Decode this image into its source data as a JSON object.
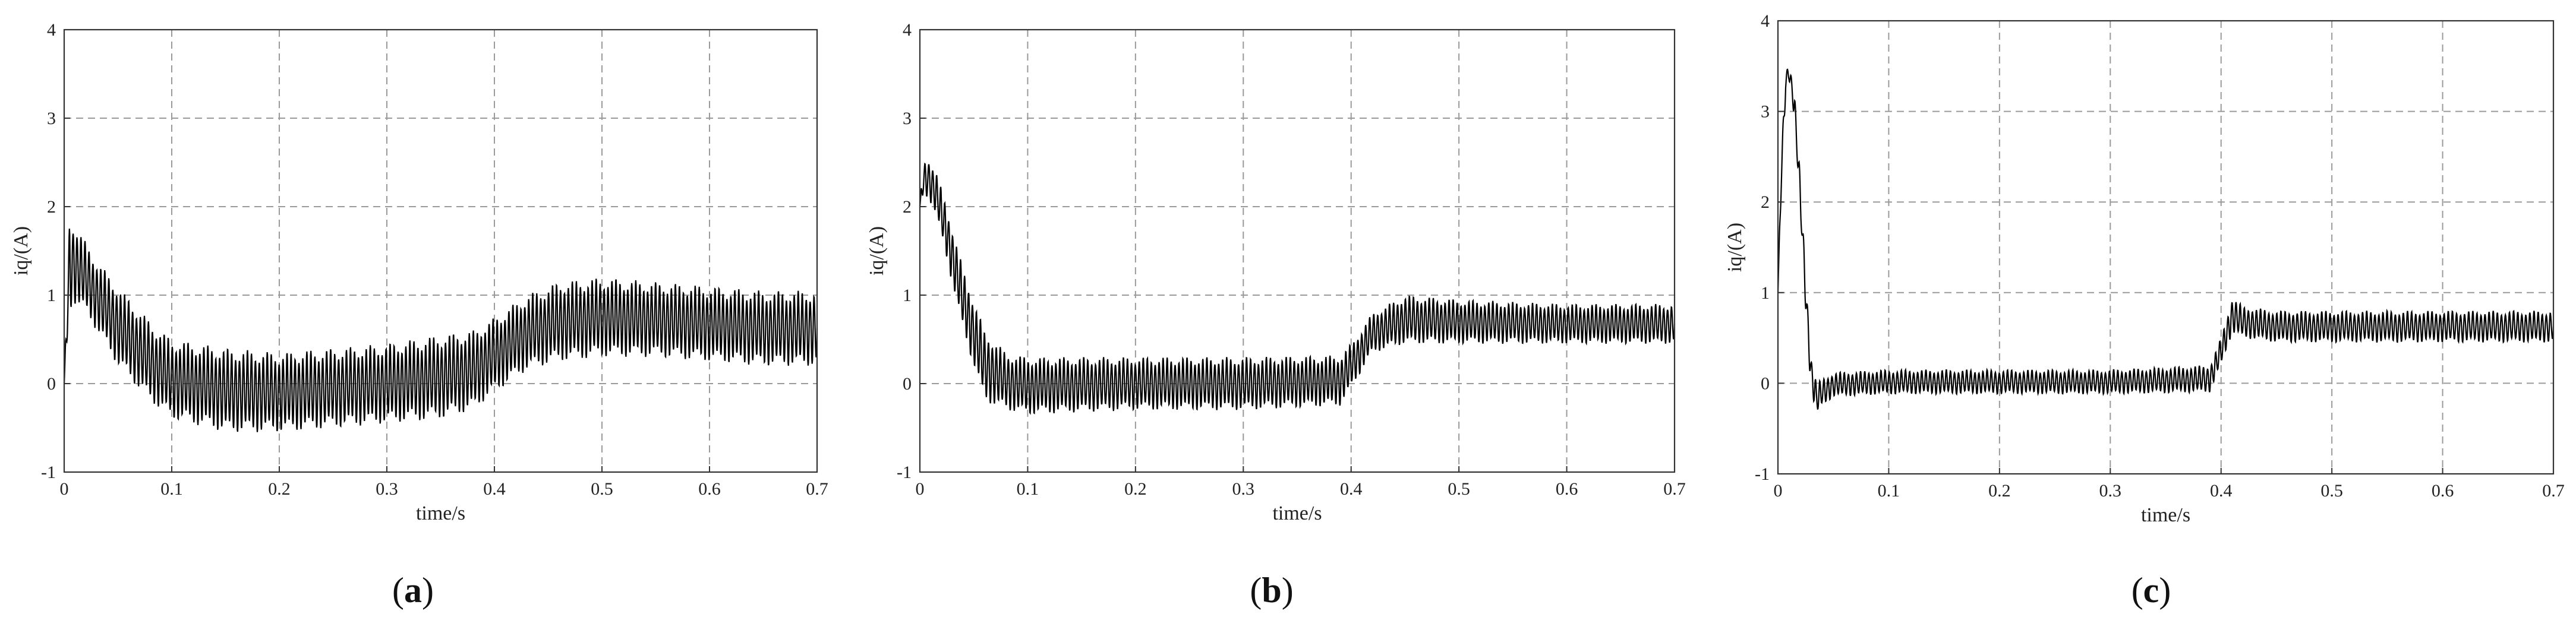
{
  "chart_data": [
    {
      "type": "line",
      "panel": "a",
      "caption_letter": "a",
      "xlabel": "time/s",
      "ylabel": "iq/(A)",
      "xlim": [
        0,
        0.7
      ],
      "ylim": [
        -1,
        4
      ],
      "x_ticks": [
        "0",
        "0.1",
        "0.2",
        "0.3",
        "0.4",
        "0.5",
        "0.6",
        "0.7"
      ],
      "y_ticks": [
        "-1",
        "0",
        "1",
        "2",
        "3",
        "4"
      ],
      "grid": true,
      "series_color": "#000000",
      "envelope": {
        "t": [
          0,
          0.005,
          0.01,
          0.02,
          0.03,
          0.05,
          0.08,
          0.1,
          0.15,
          0.2,
          0.25,
          0.3,
          0.35,
          0.38,
          0.4,
          0.43,
          0.46,
          0.5,
          0.55,
          0.6,
          0.65,
          0.7
        ],
        "upper": [
          0,
          1.9,
          1.8,
          1.6,
          1.4,
          1.1,
          0.7,
          0.5,
          0.4,
          0.35,
          0.4,
          0.45,
          0.55,
          0.6,
          0.75,
          1.0,
          1.15,
          1.2,
          1.15,
          1.1,
          1.05,
          1.05
        ],
        "lower": [
          0,
          0.8,
          0.9,
          0.8,
          0.6,
          0.2,
          -0.2,
          -0.4,
          -0.55,
          -0.55,
          -0.5,
          -0.45,
          -0.4,
          -0.3,
          -0.1,
          0.15,
          0.25,
          0.3,
          0.3,
          0.25,
          0.2,
          0.2
        ]
      }
    },
    {
      "type": "line",
      "panel": "b",
      "caption_letter": "b",
      "xlabel": "time/s",
      "ylabel": "iq/(A)",
      "xlim": [
        0,
        0.7
      ],
      "ylim": [
        -1,
        4
      ],
      "x_ticks": [
        "0",
        "0.1",
        "0.2",
        "0.3",
        "0.4",
        "0.5",
        "0.6",
        "0.7"
      ],
      "y_ticks": [
        "-1",
        "0",
        "1",
        "2",
        "3",
        "4"
      ],
      "grid": true,
      "series_color": "#000000",
      "envelope": {
        "t": [
          0,
          0.003,
          0.008,
          0.015,
          0.025,
          0.04,
          0.06,
          0.08,
          0.1,
          0.2,
          0.3,
          0.39,
          0.4,
          0.42,
          0.45,
          0.5,
          0.6,
          0.7
        ],
        "upper": [
          2.0,
          2.5,
          2.55,
          2.4,
          2.0,
          1.3,
          0.6,
          0.35,
          0.3,
          0.3,
          0.3,
          0.32,
          0.45,
          0.8,
          1.0,
          0.95,
          0.9,
          0.9
        ],
        "lower": [
          2.0,
          2.1,
          2.1,
          1.9,
          1.4,
          0.6,
          -0.2,
          -0.3,
          -0.35,
          -0.3,
          -0.3,
          -0.25,
          -0.05,
          0.35,
          0.45,
          0.45,
          0.45,
          0.45
        ]
      }
    },
    {
      "type": "line",
      "panel": "c",
      "caption_letter": "c",
      "xlabel": "time/s",
      "ylabel": "iq/(A)",
      "xlim": [
        0,
        0.7
      ],
      "ylim": [
        -1,
        4
      ],
      "x_ticks": [
        "0",
        "0.1",
        "0.2",
        "0.3",
        "0.4",
        "0.5",
        "0.6",
        "0.7"
      ],
      "y_ticks": [
        "-1",
        "0",
        "1",
        "2",
        "3",
        "4"
      ],
      "grid": true,
      "series_color": "#000000",
      "envelope": {
        "t": [
          0,
          0.003,
          0.007,
          0.01,
          0.015,
          0.02,
          0.025,
          0.03,
          0.035,
          0.04,
          0.05,
          0.1,
          0.2,
          0.3,
          0.39,
          0.4,
          0.41,
          0.42,
          0.45,
          0.5,
          0.6,
          0.7
        ],
        "upper": [
          1.0,
          2.5,
          3.45,
          3.55,
          3.2,
          2.3,
          1.2,
          0.3,
          0.0,
          0.05,
          0.12,
          0.15,
          0.15,
          0.15,
          0.2,
          0.5,
          0.95,
          0.85,
          0.8,
          0.8,
          0.8,
          0.8
        ],
        "lower": [
          1.0,
          2.1,
          3.2,
          3.35,
          2.9,
          1.9,
          0.8,
          -0.1,
          -0.35,
          -0.25,
          -0.15,
          -0.12,
          -0.12,
          -0.12,
          -0.1,
          0.2,
          0.55,
          0.5,
          0.45,
          0.45,
          0.45,
          0.45
        ]
      }
    }
  ]
}
